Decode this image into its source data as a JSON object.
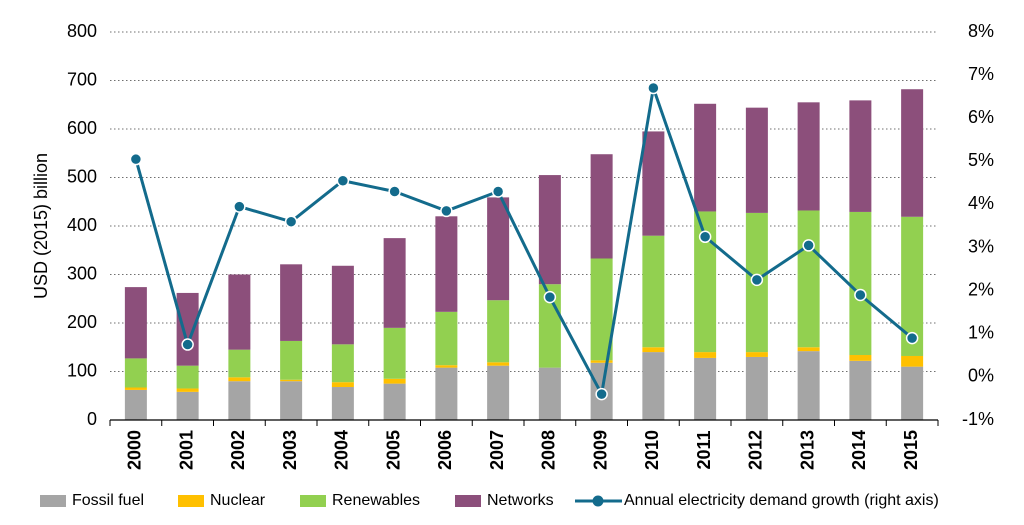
{
  "chart_data": {
    "type": "bar",
    "stacked": true,
    "title": "",
    "xlabel": "",
    "ylabel": "USD (2015) billion",
    "ylim": [
      0,
      800
    ],
    "yticks": [
      "0",
      "100",
      "200",
      "300",
      "400",
      "500",
      "600",
      "700",
      "800"
    ],
    "y2lim": [
      -1,
      8
    ],
    "y2ticks": [
      "-1%",
      "0%",
      "1%",
      "2%",
      "3%",
      "4%",
      "5%",
      "6%",
      "7%",
      "8%"
    ],
    "categories": [
      "2000",
      "2001",
      "2002",
      "2003",
      "2004",
      "2005",
      "2006",
      "2007",
      "2008",
      "2009",
      "2010",
      "2011",
      "2012",
      "2013",
      "2014",
      "2015"
    ],
    "series": [
      {
        "name": "Fossil fuel",
        "color": "#a5a5a5",
        "values": [
          62,
          58,
          80,
          80,
          68,
          75,
          108,
          112,
          108,
          118,
          140,
          128,
          130,
          142,
          122,
          110
        ]
      },
      {
        "name": "Nuclear",
        "color": "#ffc000",
        "values": [
          5,
          7,
          8,
          3,
          10,
          10,
          5,
          7,
          0,
          5,
          10,
          12,
          10,
          8,
          12,
          22
        ]
      },
      {
        "name": "Renewables",
        "color": "#92d050",
        "values": [
          60,
          47,
          57,
          80,
          78,
          105,
          110,
          128,
          172,
          210,
          230,
          290,
          287,
          282,
          295,
          287
        ]
      },
      {
        "name": "Networks",
        "color": "#8c4f7b",
        "values": [
          147,
          150,
          155,
          158,
          162,
          185,
          197,
          212,
          225,
          215,
          215,
          222,
          217,
          223,
          230,
          263
        ]
      }
    ],
    "line": {
      "name": "Annual electricity demand growth (right axis)",
      "color": "#136b8c",
      "axis": "right",
      "values": [
        5.05,
        0.75,
        3.95,
        3.6,
        4.55,
        4.3,
        3.85,
        4.3,
        1.85,
        -0.4,
        6.7,
        3.25,
        2.25,
        3.05,
        1.9,
        0.9
      ]
    },
    "legend": "bottom",
    "grid": true
  }
}
